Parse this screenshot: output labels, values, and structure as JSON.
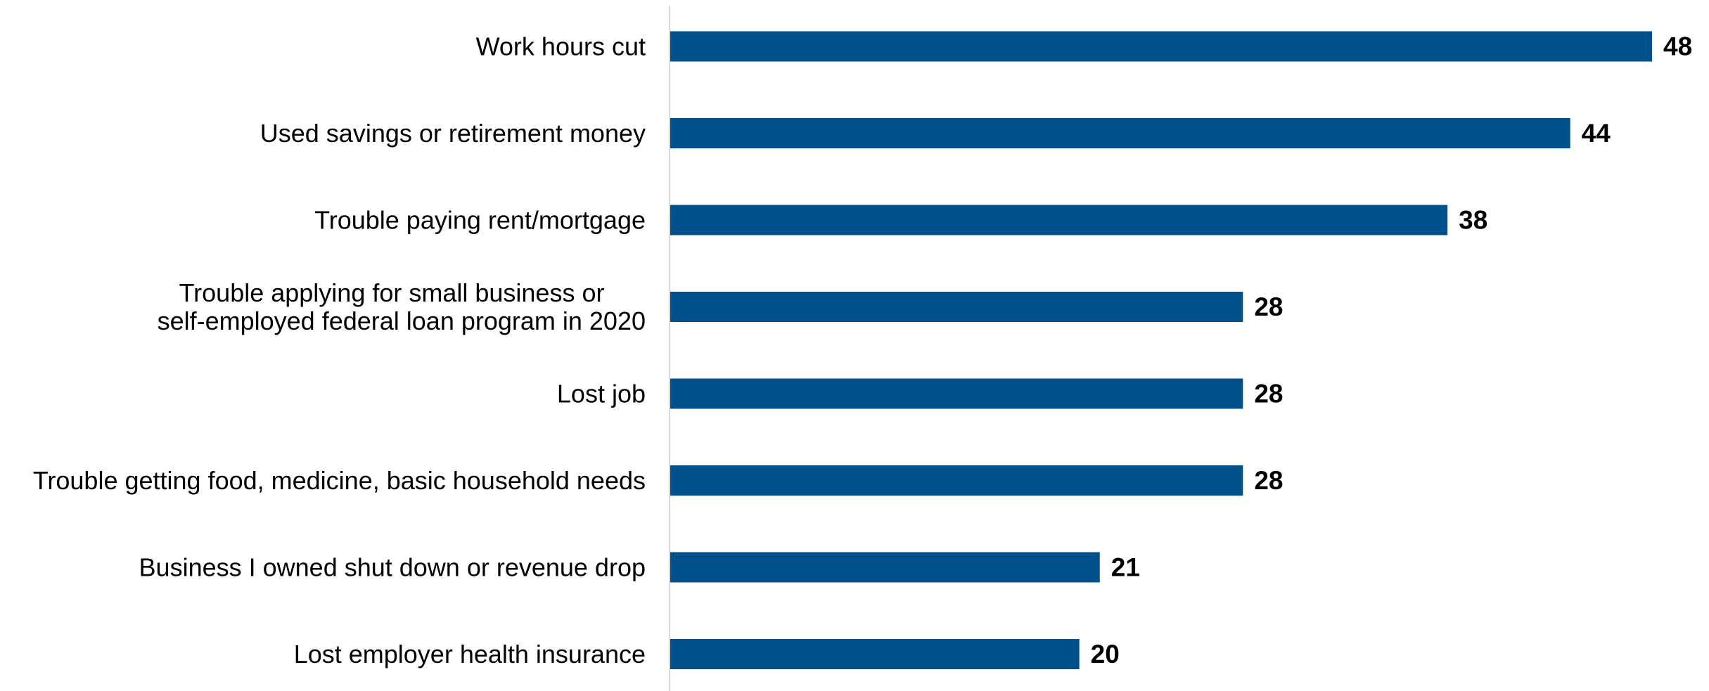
{
  "chart_data": {
    "type": "bar",
    "orientation": "horizontal",
    "title": "",
    "xlabel": "",
    "ylabel": "",
    "categories": [
      [
        "Work hours cut"
      ],
      [
        "Used savings or retirement money"
      ],
      [
        "Trouble paying rent/mortgage"
      ],
      [
        "Trouble applying for small business or",
        "self-employed federal loan program in 2020"
      ],
      [
        "Lost job"
      ],
      [
        "Trouble getting food, medicine, basic household needs"
      ],
      [
        "Business I owned shut down or revenue drop"
      ],
      [
        "Lost employer health insurance"
      ]
    ],
    "values": [
      48,
      44,
      38,
      28,
      28,
      28,
      21,
      20
    ],
    "value_labels": [
      "48",
      "44",
      "38",
      "28",
      "28",
      "28",
      "21",
      "20"
    ],
    "xlim": [
      0,
      48
    ],
    "grid": false,
    "legend": "none",
    "colors": {
      "bar": "#00508C",
      "axis": "#D9D9D9",
      "text": "#000000"
    }
  }
}
